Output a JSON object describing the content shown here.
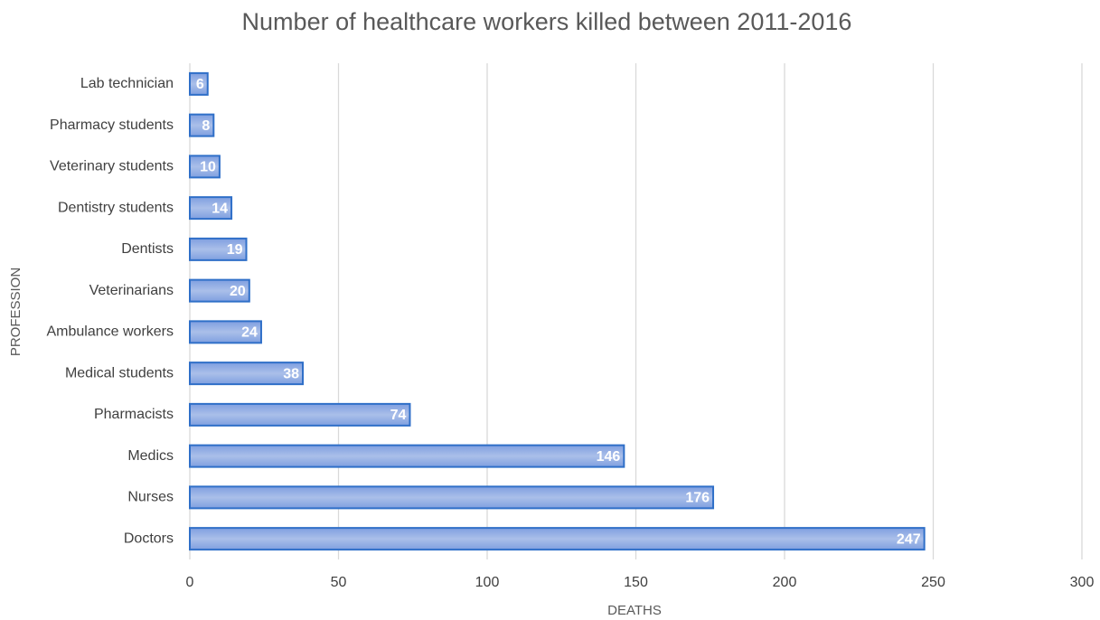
{
  "chart_data": {
    "type": "hbar",
    "title": "Number of healthcare workers killed between 2011-2016",
    "x_label": "DEATHS",
    "y_label": "PROFESSION",
    "categories": [
      "Lab technician",
      "Pharmacy students",
      "Veterinary students",
      "Dentistry students",
      "Dentists",
      "Veterinarians",
      "Ambulance workers",
      "Medical students",
      "Pharmacists",
      "Medics",
      "Nurses",
      "Doctors"
    ],
    "values": [
      6,
      8,
      10,
      14,
      19,
      20,
      24,
      38,
      74,
      146,
      176,
      247
    ],
    "color": "#2f6fc8",
    "xlim": [
      0,
      300
    ],
    "xticks": [
      0,
      50,
      100,
      150,
      200,
      250,
      300
    ],
    "grid": true
  }
}
